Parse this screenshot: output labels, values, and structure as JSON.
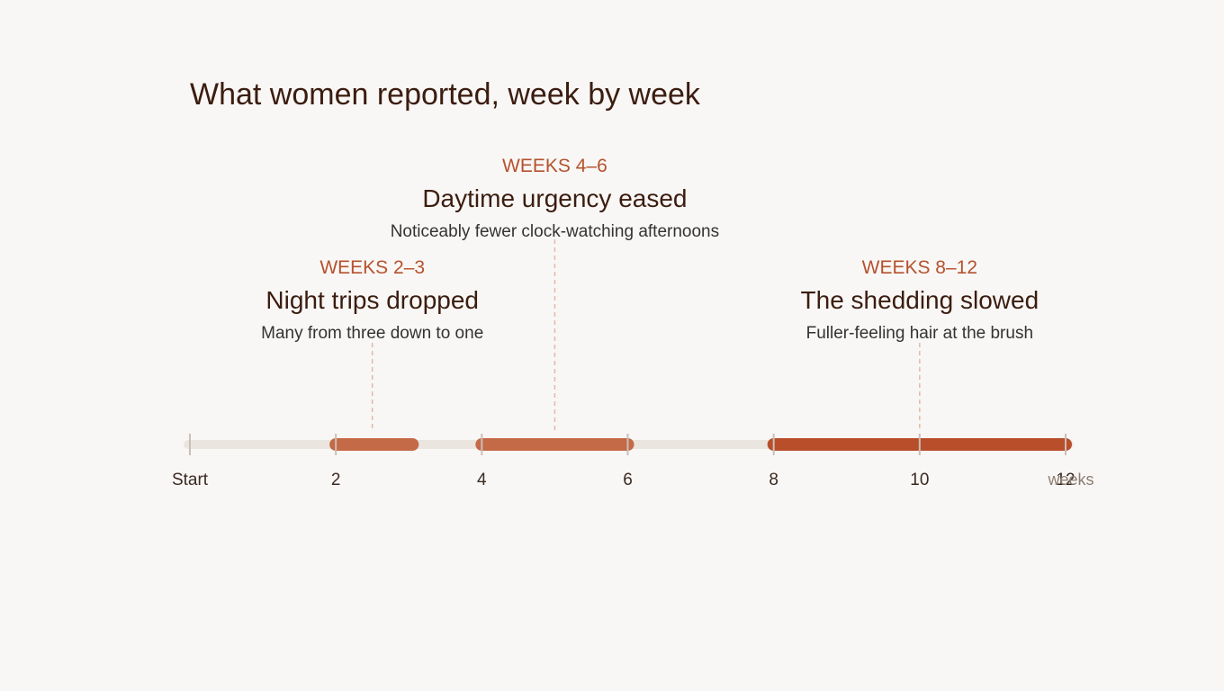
{
  "title": "What women reported, week by week",
  "axis": {
    "min": 0,
    "max": 12,
    "ticks": [
      {
        "value": 0,
        "label": "Start"
      },
      {
        "value": 2,
        "label": "2"
      },
      {
        "value": 4,
        "label": "4"
      },
      {
        "value": 6,
        "label": "6"
      },
      {
        "value": 8,
        "label": "8"
      },
      {
        "value": 10,
        "label": "10"
      },
      {
        "value": 12,
        "label": "12"
      }
    ],
    "unit": "weeks"
  },
  "colors": {
    "track": "#ebe5e0",
    "accent_light": "#c46a47",
    "accent_dark": "#b84f2a",
    "heading": "#3b1d10",
    "label_accent": "#b5522e",
    "leader": "#e2b9ad"
  },
  "milestones": [
    {
      "when": "WEEKS 2–3",
      "heading": "Night trips dropped",
      "detail": "Many from three down to one",
      "start": 2,
      "end": 3.05,
      "pointer": 2.5
    },
    {
      "when": "WEEKS 4–6",
      "heading": "Daytime urgency eased",
      "detail": "Noticeably fewer clock-watching afternoons",
      "start": 4,
      "end": 6,
      "pointer": 5
    },
    {
      "when": "WEEKS 8–12",
      "heading": "The shedding slowed",
      "detail": "Fuller-feeling hair at the brush",
      "start": 8,
      "end": 12,
      "pointer": 10
    }
  ]
}
